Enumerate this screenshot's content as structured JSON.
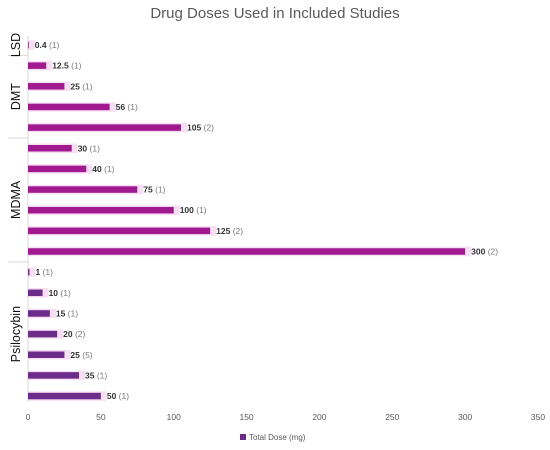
{
  "chart_data": {
    "type": "bar",
    "orientation": "horizontal",
    "title": "Drug Doses Used in Included Studies",
    "xlim": [
      0,
      350
    ],
    "x_ticks": [
      "0",
      "50",
      "100",
      "150",
      "200",
      "250",
      "300",
      "350"
    ],
    "grid": false,
    "legend_position": "bottom",
    "series": [
      {
        "name": "Total Dose (mg)",
        "color": "#A0198F"
      }
    ],
    "groups": [
      {
        "name": "LSD",
        "bars": [
          {
            "value": 0.4,
            "label": "0.4",
            "count": "(1)"
          }
        ]
      },
      {
        "name": "DMT",
        "bars": [
          {
            "value": 12.5,
            "label": "12.5",
            "count": "(1)"
          },
          {
            "value": 25,
            "label": "25",
            "count": "(1)"
          },
          {
            "value": 56,
            "label": "56",
            "count": "(1)"
          },
          {
            "value": 105,
            "label": "105",
            "count": "(2)"
          }
        ]
      },
      {
        "name": "MDMA",
        "bars": [
          {
            "value": 30,
            "label": "30",
            "count": "(1)"
          },
          {
            "value": 40,
            "label": "40",
            "count": "(1)"
          },
          {
            "value": 75,
            "label": "75",
            "count": "(1)"
          },
          {
            "value": 100,
            "label": "100",
            "count": "(1)"
          },
          {
            "value": 125,
            "label": "125",
            "count": "(2)"
          },
          {
            "value": 300,
            "label": "300",
            "count": "(2)"
          }
        ]
      },
      {
        "name": "Psilocybin",
        "bars": [
          {
            "value": 1,
            "label": "1",
            "count": "(1)"
          },
          {
            "value": 10,
            "label": "10",
            "count": "(1)"
          },
          {
            "value": 15,
            "label": "15",
            "count": "(1)"
          },
          {
            "value": 20,
            "label": "20",
            "count": "(2)"
          },
          {
            "value": 25,
            "label": "25",
            "count": "(5)"
          },
          {
            "value": 35,
            "label": "35",
            "count": "(1)"
          },
          {
            "value": 50,
            "label": "50",
            "count": "(1)"
          }
        ]
      }
    ],
    "colors": {
      "magenta_bar": "#A0198F",
      "purple_bar": "#6B2C8A",
      "shadow": "#F3C8EC",
      "value_text": "#333333",
      "count_text": "#7A7A7A"
    }
  }
}
